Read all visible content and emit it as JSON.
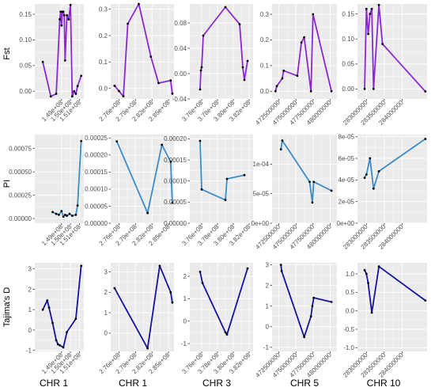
{
  "figure": {
    "row_labels": [
      "Fst",
      "PI",
      "Tajima's D"
    ],
    "column_labels": [
      "CHR 1",
      "CHR 1",
      "CHR 3",
      "CHR 5",
      "CHR 10"
    ]
  },
  "colors": {
    "panel_bg": "#ebebeb",
    "grid": "#ffffff",
    "point": "#000000"
  },
  "chart_data": [
    {
      "type": "line",
      "row": 0,
      "col": 0,
      "color": "#8c28d2",
      "xlim": [
        146000000.0,
        151500000.0
      ],
      "ylim": [
        -0.015,
        0.17
      ],
      "xticks": [
        149000000.0,
        150000000.0,
        151000000.0
      ],
      "xtick_labels": [
        "1.49e+08",
        "1.50e+08",
        "1.51e+08"
      ],
      "yticks": [
        0,
        0.05,
        0.1,
        0.15
      ],
      "ytick_labels": [
        "0.00",
        "0.05",
        "0.10",
        "0.15"
      ],
      "x": [
        146900000.0,
        147800000.0,
        148400000.0,
        148800000.0,
        148900000.0,
        149000000.0,
        149100000.0,
        149200000.0,
        149300000.0,
        149400000.0,
        149600000.0,
        149800000.0,
        150000000.0,
        150200000.0,
        150400000.0,
        150600000.0,
        150800000.0,
        151200000.0
      ],
      "y": [
        0.057,
        -0.01,
        -0.005,
        0.14,
        0.155,
        0.128,
        0.155,
        0.155,
        0.148,
        0.06,
        0.148,
        0.14,
        0.168,
        -0.01,
        0.0,
        -0.005,
        0.01,
        0.03
      ]
    },
    {
      "type": "line",
      "row": 0,
      "col": 1,
      "color": "#8c28d2",
      "xlim": [
        274500000.0,
        286000000.0
      ],
      "ylim": [
        -0.04,
        0.32
      ],
      "xticks": [
        276000000.0,
        279000000.0,
        282000000.0,
        285000000.0
      ],
      "xtick_labels": [
        "2.76e+08",
        "2.79e+08",
        "2.82e+08",
        "2.85e+08"
      ],
      "yticks": [
        0,
        0.1,
        0.2,
        0.3
      ],
      "ytick_labels": [
        "0.0",
        "0.1",
        "0.2",
        "0.3"
      ],
      "x": [
        275200000.0,
        276000000.0,
        276800000.0,
        277600000.0,
        279600000.0,
        281800000.0,
        283200000.0,
        285400000.0,
        285700000.0
      ],
      "y": [
        0.01,
        -0.01,
        -0.03,
        0.245,
        0.32,
        0.12,
        0.02,
        0.03,
        -0.02
      ]
    },
    {
      "type": "line",
      "row": 0,
      "col": 2,
      "color": "#8c28d2",
      "xlim": [
        374500000.0,
        382500000.0
      ],
      "ylim": [
        -0.04,
        0.11
      ],
      "xticks": [
        376000000.0,
        378000000.0,
        380000000.0,
        382000000.0
      ],
      "xtick_labels": [
        "3.76e+08",
        "3.78e+08",
        "3.80e+08",
        "3.82e+08"
      ],
      "yticks": [
        -0.04,
        0,
        0.04,
        0.08
      ],
      "ytick_labels": [
        "-0.04",
        "0.00",
        "0.04",
        "0.08"
      ],
      "x": [
        375800000.0,
        375900000.0,
        376000000.0,
        376200000.0,
        379000000.0,
        380800000.0,
        381200000.0,
        381400000.0,
        381800000.0
      ],
      "y": [
        -0.025,
        0.005,
        0.01,
        0.06,
        0.105,
        0.078,
        0.01,
        -0.01,
        0.02
      ]
    },
    {
      "type": "line",
      "row": 0,
      "col": 3,
      "color": "#8c28d2",
      "xlim": [
        471500000.0,
        481000000.0
      ],
      "ylim": [
        -0.03,
        0.34
      ],
      "xticks": [
        472500000.0,
        475000000.0,
        477500000.0,
        480000000.0
      ],
      "xtick_labels": [
        "472500000",
        "475000000",
        "477500000",
        "480000000"
      ],
      "yticks": [
        0,
        0.1,
        0.2,
        0.3
      ],
      "ytick_labels": [
        "0.0",
        "0.1",
        "0.2",
        "0.3"
      ],
      "x": [
        472000000.0,
        472200000.0,
        473000000.0,
        473200000.0,
        475200000.0,
        475800000.0,
        476200000.0,
        477200000.0,
        477500000.0,
        480200000.0
      ],
      "y": [
        0.0,
        0.02,
        0.05,
        0.08,
        0.06,
        0.19,
        0.21,
        0.0,
        0.3,
        0.0
      ]
    },
    {
      "type": "line",
      "row": 0,
      "col": 4,
      "color": "#8c28d2",
      "xlim": [
        282750000.0,
        284700000.0
      ],
      "ylim": [
        -0.02,
        0.17
      ],
      "xticks": [
        283000000.0,
        283500000.0,
        284000000.0
      ],
      "xtick_labels": [
        "283000000",
        "283500000",
        "284000000"
      ],
      "yticks": [
        0,
        0.05,
        0.1,
        0.15
      ],
      "ytick_labels": [
        "0.00",
        "0.05",
        "0.10",
        "0.15"
      ],
      "x": [
        282950000.0,
        283000000.0,
        283050000.0,
        283100000.0,
        283150000.0,
        283200000.0,
        283350000.0,
        283450000.0,
        284650000.0
      ],
      "y": [
        0.0,
        0.16,
        0.11,
        0.15,
        0.16,
        0.0,
        0.168,
        0.09,
        -0.005
      ]
    },
    {
      "type": "line",
      "row": 1,
      "col": 0,
      "color": "#3c8cc8",
      "xlim": [
        146000000.0,
        151500000.0
      ],
      "ylim": [
        -5e-05,
        0.0009
      ],
      "xticks": [
        149000000.0,
        150000000.0,
        151000000.0
      ],
      "xtick_labels": [
        "1.49e+08",
        "1.50e+08",
        "1.51e+08"
      ],
      "yticks": [
        0,
        0.00025,
        0.0005,
        0.00075
      ],
      "ytick_labels": [
        "0.00000",
        "0.00025",
        "0.00050",
        "0.00075"
      ],
      "x": [
        148000000.0,
        148400000.0,
        148700000.0,
        149000000.0,
        149200000.0,
        149400000.0,
        149600000.0,
        149900000.0,
        150200000.0,
        150600000.0,
        150800000.0,
        151200000.0
      ],
      "y": [
        7e-05,
        5e-05,
        4e-05,
        8e-05,
        2e-05,
        4e-05,
        3e-05,
        5e-05,
        3e-05,
        4e-05,
        0.00014,
        0.00083
      ]
    },
    {
      "type": "line",
      "row": 1,
      "col": 1,
      "color": "#3c8cc8",
      "xlim": [
        274500000.0,
        286000000.0
      ],
      "ylim": [
        0,
        0.00026
      ],
      "xticks": [
        276000000.0,
        279000000.0,
        282000000.0,
        285000000.0
      ],
      "xtick_labels": [
        "2.76e+08",
        "2.79e+08",
        "2.82e+08",
        "2.85e+08"
      ],
      "yticks": [
        0,
        5e-05,
        0.0001,
        0.00015,
        0.0002,
        0.00025
      ],
      "ytick_labels": [
        "0.00000",
        "0.00005",
        "0.00010",
        "0.00015",
        "0.00020",
        "0.00025"
      ],
      "x": [
        275600000.0,
        281200000.0,
        283800000.0,
        285400000.0,
        285700000.0
      ],
      "y": [
        0.00024,
        3e-05,
        0.00023,
        0.00018,
        6e-05
      ]
    },
    {
      "type": "line",
      "row": 1,
      "col": 2,
      "color": "#3c8cc8",
      "xlim": [
        374500000.0,
        382500000.0
      ],
      "ylim": [
        0,
        0.00021
      ],
      "xticks": [
        376000000.0,
        378000000.0,
        380000000.0,
        382000000.0
      ],
      "xtick_labels": [
        "3.76e+08",
        "3.78e+08",
        "3.80e+08",
        "3.82e+08"
      ],
      "yticks": [
        0,
        5e-05,
        0.0001,
        0.00015,
        0.0002
      ],
      "ytick_labels": [
        "0.00000",
        "0.00005",
        "0.00010",
        "0.00015",
        "0.00020"
      ],
      "x": [
        375800000.0,
        376000000.0,
        379000000.0,
        379200000.0,
        381400000.0
      ],
      "y": [
        0.000195,
        8e-05,
        5.5e-05,
        0.000105,
        0.000114
      ]
    },
    {
      "type": "line",
      "row": 1,
      "col": 3,
      "color": "#3c8cc8",
      "xlim": [
        471500000.0,
        481000000.0
      ],
      "ylim": [
        0,
        0.00015
      ],
      "xticks": [
        472500000.0,
        475000000.0,
        477500000.0,
        480000000.0
      ],
      "xtick_labels": [
        "472500000",
        "475000000",
        "477500000",
        "480000000"
      ],
      "yticks": [
        0,
        5e-05,
        0.0001
      ],
      "ytick_labels": [
        "0e+00",
        "5e-05",
        "1e-04"
      ],
      "x": [
        472800000.0,
        473000000.0,
        477000000.0,
        477400000.0,
        477600000.0,
        480200000.0
      ],
      "y": [
        0.000125,
        0.00014,
        7e-05,
        3.5e-05,
        7e-05,
        5.5e-05
      ]
    },
    {
      "type": "line",
      "row": 1,
      "col": 4,
      "color": "#3c8cc8",
      "xlim": [
        282750000.0,
        284700000.0
      ],
      "ylim": [
        0,
        8.2e-05
      ],
      "xticks": [
        283000000.0,
        283500000.0,
        284000000.0
      ],
      "xtick_labels": [
        "283000000",
        "283500000",
        "284000000"
      ],
      "yticks": [
        0,
        2e-05,
        4e-05,
        6e-05,
        8e-05
      ],
      "ytick_labels": [
        "0e+00",
        "2e-05",
        "4e-05",
        "6e-05",
        "8e-05"
      ],
      "x": [
        282950000.0,
        283000000.0,
        283100000.0,
        283200000.0,
        283350000.0,
        284650000.0
      ],
      "y": [
        4.2e-05,
        4.5e-05,
        6e-05,
        3.2e-05,
        4.8e-05,
        7.8e-05
      ]
    },
    {
      "type": "line",
      "row": 2,
      "col": 0,
      "color": "#1414a0",
      "xlim": [
        146000000.0,
        151500000.0
      ],
      "ylim": [
        -1.05,
        3.3
      ],
      "xticks": [
        149000000.0,
        150000000.0,
        151000000.0
      ],
      "xtick_labels": [
        "1.49e+08",
        "1.50e+08",
        "1.51e+08"
      ],
      "yticks": [
        -1,
        0,
        1,
        2,
        3
      ],
      "ytick_labels": [
        "-1",
        "0",
        "1",
        "2",
        "3"
      ],
      "x": [
        146900000.0,
        147400000.0,
        147600000.0,
        148000000.0,
        148400000.0,
        148600000.0,
        148800000.0,
        149200000.0,
        149600000.0,
        150600000.0,
        151200000.0
      ],
      "y": [
        1.0,
        1.45,
        1.1,
        0.35,
        -0.5,
        -0.7,
        -0.75,
        -0.85,
        -0.1,
        0.55,
        3.15
      ]
    },
    {
      "type": "line",
      "row": 2,
      "col": 1,
      "color": "#1414a0",
      "xlim": [
        274500000.0,
        286000000.0
      ],
      "ylim": [
        -0.9,
        3.45
      ],
      "xticks": [
        276000000.0,
        279000000.0,
        282000000.0,
        285000000.0
      ],
      "xtick_labels": [
        "2.76e+08",
        "2.79e+08",
        "2.82e+08",
        "2.85e+08"
      ],
      "yticks": [
        0,
        1,
        2,
        3
      ],
      "ytick_labels": [
        "0",
        "1",
        "2",
        "3"
      ],
      "x": [
        275200000.0,
        281200000.0,
        283400000.0,
        285400000.0,
        285700000.0
      ],
      "y": [
        2.2,
        -0.75,
        3.3,
        2.0,
        1.5
      ]
    },
    {
      "type": "line",
      "row": 2,
      "col": 2,
      "color": "#1414a0",
      "xlim": [
        374500000.0,
        382500000.0
      ],
      "ylim": [
        -1.35,
        2.6
      ],
      "xticks": [
        376000000.0,
        378000000.0,
        380000000.0,
        382000000.0
      ],
      "xtick_labels": [
        "3.76e+08",
        "3.78e+08",
        "3.80e+08",
        "3.82e+08"
      ],
      "yticks": [
        -1,
        0,
        1,
        2
      ],
      "ytick_labels": [
        "-1",
        "0",
        "1",
        "2"
      ],
      "x": [
        375800000.0,
        376100000.0,
        379000000.0,
        379200000.0,
        381800000.0
      ],
      "y": [
        2.2,
        1.7,
        -0.5,
        -0.6,
        2.35
      ]
    },
    {
      "type": "line",
      "row": 2,
      "col": 3,
      "color": "#1414a0",
      "xlim": [
        471500000.0,
        481000000.0
      ],
      "ylim": [
        -1.2,
        3.1
      ],
      "xticks": [
        472500000.0,
        475000000.0,
        477500000.0,
        480000000.0
      ],
      "xtick_labels": [
        "472500000",
        "475000000",
        "477500000",
        "480000000"
      ],
      "yticks": [
        -1,
        0,
        1,
        2,
        3
      ],
      "ytick_labels": [
        "-1",
        "0",
        "1",
        "2",
        "3"
      ],
      "x": [
        472800000.0,
        472900000.0,
        476200000.0,
        477200000.0,
        477400000.0,
        477600000.0,
        480200000.0
      ],
      "y": [
        3.0,
        2.7,
        -0.5,
        0.5,
        1.0,
        1.4,
        1.2
      ]
    },
    {
      "type": "line",
      "row": 2,
      "col": 4,
      "color": "#1414a0",
      "xlim": [
        282750000.0,
        284700000.0
      ],
      "ylim": [
        -1.1,
        1.3
      ],
      "xticks": [
        283000000.0,
        283500000.0,
        284000000.0
      ],
      "xtick_labels": [
        "283000000",
        "283500000",
        "284000000"
      ],
      "yticks": [
        -1,
        -0.5,
        0,
        0.5,
        1
      ],
      "ytick_labels": [
        "-1.0",
        "-0.5",
        "0.0",
        "0.5",
        "1.0"
      ],
      "x": [
        282950000.0,
        283000000.0,
        283050000.0,
        283150000.0,
        283350000.0,
        284650000.0
      ],
      "y": [
        1.1,
        1.0,
        0.75,
        -0.05,
        1.2,
        0.28
      ]
    }
  ]
}
